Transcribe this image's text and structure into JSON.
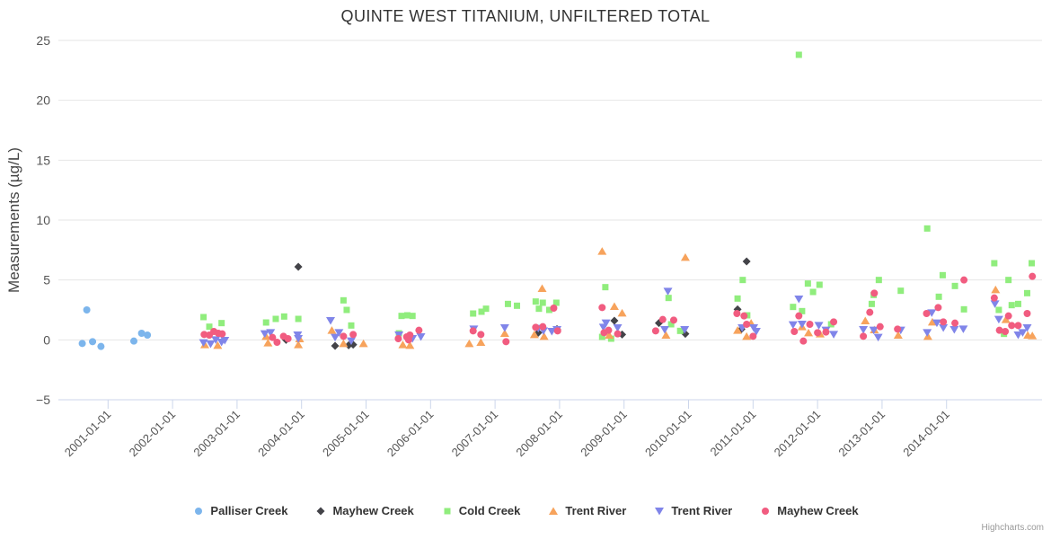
{
  "header": {
    "title": "QUINTE WEST TITANIUM, UNFILTERED TOTAL"
  },
  "credits": {
    "label": "Highcharts.com"
  },
  "chart_data": {
    "type": "scatter",
    "title": "QUINTE WEST TITANIUM, UNFILTERED TOTAL",
    "xlabel": "",
    "ylabel": "Measurements (µg/L)",
    "xlim": [
      2000.23,
      2015.48
    ],
    "ylim": [
      -5,
      25
    ],
    "y_ticks": [
      -5,
      0,
      5,
      10,
      15,
      20,
      25
    ],
    "x_tick_years": [
      2001,
      2002,
      2003,
      2004,
      2005,
      2006,
      2007,
      2008,
      2009,
      2010,
      2011,
      2012,
      2013,
      2014
    ],
    "x_tick_labels": [
      "2001-01-01",
      "2002-01-01",
      "2003-01-01",
      "2004-01-01",
      "2005-01-01",
      "2006-01-01",
      "2007-01-01",
      "2008-01-01",
      "2009-01-01",
      "2010-01-01",
      "2011-01-01",
      "2012-01-01",
      "2013-01-01",
      "2014-01-01"
    ],
    "grid": true,
    "legend_position": "bottom",
    "colors": {
      "grid": "#e6e6e6",
      "axis_line": "#ccd6eb",
      "tick_label": "#555555"
    },
    "series": [
      {
        "name": "Palliser Creek",
        "color": "#7cb5ec",
        "marker": "circle",
        "data": [
          [
            2000.6,
            -0.3
          ],
          [
            2000.67,
            2.5
          ],
          [
            2000.76,
            -0.15
          ],
          [
            2000.89,
            -0.55
          ],
          [
            2001.4,
            -0.1
          ],
          [
            2001.52,
            0.55
          ],
          [
            2001.61,
            0.4
          ]
        ]
      },
      {
        "name": "Mayhew Creek",
        "color": "#434348",
        "marker": "diamond",
        "data": [
          [
            2003.76,
            0.0
          ],
          [
            2003.95,
            6.1
          ],
          [
            2004.52,
            -0.5
          ],
          [
            2004.73,
            -0.45
          ],
          [
            2004.8,
            -0.4
          ],
          [
            2007.67,
            0.6
          ],
          [
            2007.96,
            0.9
          ],
          [
            2008.85,
            1.6
          ],
          [
            2008.97,
            0.45
          ],
          [
            2009.54,
            1.4
          ],
          [
            2009.95,
            0.5
          ],
          [
            2010.76,
            2.55
          ],
          [
            2010.82,
            0.9
          ],
          [
            2010.9,
            6.55
          ]
        ]
      },
      {
        "name": "Cold Creek",
        "color": "#90ed7d",
        "marker": "square",
        "data": [
          [
            2002.48,
            1.9
          ],
          [
            2002.57,
            1.1
          ],
          [
            2002.76,
            1.4
          ],
          [
            2003.45,
            1.45
          ],
          [
            2003.6,
            1.75
          ],
          [
            2003.73,
            1.95
          ],
          [
            2003.95,
            1.75
          ],
          [
            2004.65,
            3.3
          ],
          [
            2004.7,
            2.5
          ],
          [
            2004.77,
            1.2
          ],
          [
            2005.51,
            0.55
          ],
          [
            2005.55,
            2.0
          ],
          [
            2005.64,
            2.05
          ],
          [
            2005.72,
            2.0
          ],
          [
            2006.66,
            2.2
          ],
          [
            2006.79,
            2.35
          ],
          [
            2006.86,
            2.6
          ],
          [
            2007.2,
            3.0
          ],
          [
            2007.34,
            2.85
          ],
          [
            2007.63,
            3.2
          ],
          [
            2007.68,
            2.6
          ],
          [
            2007.74,
            3.1
          ],
          [
            2007.84,
            2.5
          ],
          [
            2007.95,
            3.1
          ],
          [
            2008.66,
            0.25
          ],
          [
            2008.71,
            4.4
          ],
          [
            2008.8,
            0.1
          ],
          [
            2009.69,
            3.5
          ],
          [
            2009.73,
            1.3
          ],
          [
            2009.87,
            0.75
          ],
          [
            2010.76,
            3.45
          ],
          [
            2010.84,
            5.0
          ],
          [
            2010.91,
            2.05
          ],
          [
            2011.62,
            2.75
          ],
          [
            2011.71,
            23.8
          ],
          [
            2011.76,
            2.4
          ],
          [
            2011.85,
            4.7
          ],
          [
            2011.93,
            4.0
          ],
          [
            2012.03,
            4.6
          ],
          [
            2012.21,
            1.3
          ],
          [
            2012.84,
            3.0
          ],
          [
            2012.87,
            3.75
          ],
          [
            2012.95,
            5.0
          ],
          [
            2013.29,
            4.1
          ],
          [
            2013.7,
            9.3
          ],
          [
            2013.88,
            3.6
          ],
          [
            2013.94,
            5.4
          ],
          [
            2014.13,
            4.5
          ],
          [
            2014.27,
            2.55
          ],
          [
            2014.74,
            6.4
          ],
          [
            2014.81,
            2.5
          ],
          [
            2014.89,
            0.5
          ],
          [
            2014.96,
            5.0
          ],
          [
            2015.01,
            2.9
          ],
          [
            2015.11,
            3.0
          ],
          [
            2015.25,
            3.9
          ],
          [
            2015.32,
            6.4
          ]
        ]
      },
      {
        "name": "Trent River",
        "color": "#f7a35c",
        "marker": "triangle",
        "data": [
          [
            2002.5,
            -0.4
          ],
          [
            2002.7,
            -0.45
          ],
          [
            2003.45,
            0.3
          ],
          [
            2003.48,
            -0.25
          ],
          [
            2003.95,
            -0.4
          ],
          [
            2003.97,
            0.1
          ],
          [
            2004.47,
            0.8
          ],
          [
            2004.65,
            -0.3
          ],
          [
            2004.96,
            -0.3
          ],
          [
            2005.57,
            -0.4
          ],
          [
            2005.68,
            -0.45
          ],
          [
            2006.6,
            -0.3
          ],
          [
            2006.78,
            -0.2
          ],
          [
            2007.15,
            0.55
          ],
          [
            2007.61,
            0.45
          ],
          [
            2007.73,
            4.3
          ],
          [
            2007.76,
            0.3
          ],
          [
            2008.66,
            7.4
          ],
          [
            2008.77,
            0.4
          ],
          [
            2008.85,
            2.8
          ],
          [
            2008.97,
            2.25
          ],
          [
            2009.65,
            0.4
          ],
          [
            2009.95,
            6.9
          ],
          [
            2010.76,
            0.8
          ],
          [
            2010.9,
            0.3
          ],
          [
            2010.97,
            1.4
          ],
          [
            2011.76,
            1.1
          ],
          [
            2011.86,
            0.6
          ],
          [
            2012.04,
            0.5
          ],
          [
            2012.74,
            1.6
          ],
          [
            2012.88,
            0.85
          ],
          [
            2013.25,
            0.4
          ],
          [
            2013.71,
            0.3
          ],
          [
            2013.78,
            1.5
          ],
          [
            2014.76,
            4.2
          ],
          [
            2014.92,
            1.7
          ],
          [
            2015.26,
            0.4
          ],
          [
            2015.33,
            0.35
          ]
        ]
      },
      {
        "name": "Trent River",
        "color": "#8085e9",
        "marker": "triangle-down",
        "data": [
          [
            2002.48,
            -0.25
          ],
          [
            2002.59,
            -0.35
          ],
          [
            2002.67,
            0.0
          ],
          [
            2002.76,
            -0.2
          ],
          [
            2002.81,
            -0.05
          ],
          [
            2003.43,
            0.5
          ],
          [
            2003.52,
            0.6
          ],
          [
            2003.94,
            0.4
          ],
          [
            2003.95,
            0.1
          ],
          [
            2004.45,
            1.6
          ],
          [
            2004.52,
            0.2
          ],
          [
            2004.58,
            0.6
          ],
          [
            2004.77,
            -0.1
          ],
          [
            2005.51,
            0.4
          ],
          [
            2005.72,
            0.1
          ],
          [
            2005.85,
            0.25
          ],
          [
            2006.67,
            0.9
          ],
          [
            2007.15,
            1.0
          ],
          [
            2007.67,
            0.95
          ],
          [
            2007.75,
            0.75
          ],
          [
            2007.88,
            0.7
          ],
          [
            2007.96,
            0.85
          ],
          [
            2008.68,
            1.05
          ],
          [
            2008.72,
            1.4
          ],
          [
            2008.9,
            1.0
          ],
          [
            2009.63,
            0.85
          ],
          [
            2009.68,
            4.05
          ],
          [
            2009.94,
            0.85
          ],
          [
            2010.83,
            1.0
          ],
          [
            2011.01,
            1.0
          ],
          [
            2011.05,
            0.7
          ],
          [
            2011.62,
            1.25
          ],
          [
            2011.71,
            3.4
          ],
          [
            2011.76,
            1.3
          ],
          [
            2012.02,
            1.2
          ],
          [
            2012.13,
            0.8
          ],
          [
            2012.25,
            0.45
          ],
          [
            2012.71,
            0.85
          ],
          [
            2012.87,
            0.8
          ],
          [
            2012.94,
            0.2
          ],
          [
            2013.29,
            0.8
          ],
          [
            2013.7,
            0.6
          ],
          [
            2013.77,
            2.25
          ],
          [
            2013.85,
            1.4
          ],
          [
            2013.95,
            1.0
          ],
          [
            2014.12,
            0.85
          ],
          [
            2014.26,
            0.9
          ],
          [
            2014.75,
            3.0
          ],
          [
            2014.81,
            1.7
          ],
          [
            2015.11,
            0.4
          ],
          [
            2015.18,
            0.6
          ],
          [
            2015.25,
            1.0
          ]
        ]
      },
      {
        "name": "Mayhew Creek",
        "color": "#f15c80",
        "marker": "circle",
        "data": [
          [
            2002.49,
            0.45
          ],
          [
            2002.57,
            0.4
          ],
          [
            2002.64,
            0.7
          ],
          [
            2002.71,
            0.55
          ],
          [
            2002.77,
            0.5
          ],
          [
            2003.55,
            0.2
          ],
          [
            2003.62,
            -0.2
          ],
          [
            2003.72,
            0.3
          ],
          [
            2003.79,
            0.1
          ],
          [
            2004.65,
            0.3
          ],
          [
            2004.8,
            0.45
          ],
          [
            2005.5,
            0.1
          ],
          [
            2005.63,
            0.25
          ],
          [
            2005.66,
            0.0
          ],
          [
            2005.68,
            0.4
          ],
          [
            2005.82,
            0.8
          ],
          [
            2006.66,
            0.75
          ],
          [
            2006.78,
            0.45
          ],
          [
            2007.17,
            -0.15
          ],
          [
            2007.63,
            1.05
          ],
          [
            2007.74,
            1.1
          ],
          [
            2007.91,
            2.65
          ],
          [
            2007.97,
            0.75
          ],
          [
            2008.66,
            2.7
          ],
          [
            2008.69,
            0.6
          ],
          [
            2008.76,
            0.8
          ],
          [
            2008.9,
            0.5
          ],
          [
            2009.49,
            0.75
          ],
          [
            2009.6,
            1.7
          ],
          [
            2009.77,
            1.65
          ],
          [
            2010.75,
            2.2
          ],
          [
            2010.86,
            2.0
          ],
          [
            2010.9,
            1.3
          ],
          [
            2011.0,
            0.3
          ],
          [
            2011.64,
            0.7
          ],
          [
            2011.71,
            2.0
          ],
          [
            2011.78,
            -0.1
          ],
          [
            2011.88,
            1.3
          ],
          [
            2012.0,
            0.6
          ],
          [
            2012.13,
            0.65
          ],
          [
            2012.25,
            1.5
          ],
          [
            2012.71,
            0.3
          ],
          [
            2012.81,
            2.3
          ],
          [
            2012.88,
            3.9
          ],
          [
            2012.97,
            1.1
          ],
          [
            2013.24,
            0.9
          ],
          [
            2013.69,
            2.2
          ],
          [
            2013.87,
            2.7
          ],
          [
            2013.95,
            1.5
          ],
          [
            2014.13,
            1.4
          ],
          [
            2014.27,
            5.0
          ],
          [
            2014.74,
            3.5
          ],
          [
            2014.82,
            0.8
          ],
          [
            2014.91,
            0.7
          ],
          [
            2014.96,
            2.0
          ],
          [
            2015.01,
            1.2
          ],
          [
            2015.11,
            1.2
          ],
          [
            2015.25,
            2.2
          ],
          [
            2015.33,
            5.3
          ]
        ]
      }
    ]
  }
}
